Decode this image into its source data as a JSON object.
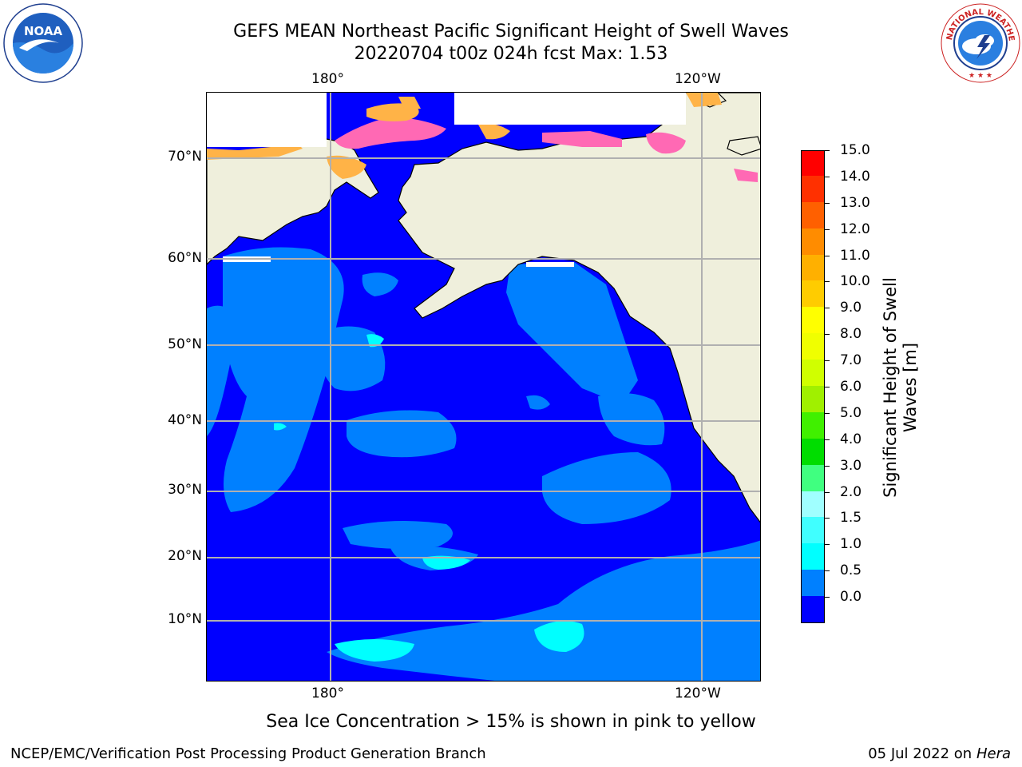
{
  "header": {
    "title_line1": "GEFS MEAN Northeast Pacific Significant Height of Swell Waves",
    "title_line2": "20220704 t00z 024h fcst   Max: 1.53"
  },
  "logos": {
    "left": {
      "name": "noaa-logo",
      "text": "NOAA"
    },
    "right": {
      "name": "nws-logo",
      "text": "NATIONAL WEATHER SERVICE"
    }
  },
  "map": {
    "lon_labels": [
      "180°",
      "120°W"
    ],
    "lat_labels": [
      "70°N",
      "60°N",
      "50°N",
      "40°N",
      "30°N",
      "20°N",
      "10°N"
    ],
    "colors": {
      "ocean_low": "#0000ff",
      "ocean_mid": "#0080ff",
      "cyan": "#00ffff",
      "land": "#efefdc",
      "ice_pink": "#ff69b4",
      "ice_orange": "#ffb347",
      "grid": "#b0b0b0"
    }
  },
  "colorbar": {
    "title": "Significant Height of Swell Waves [m]",
    "ticks": [
      "15.0",
      "14.0",
      "13.0",
      "12.0",
      "11.0",
      "10.0",
      "9.0",
      "8.0",
      "7.0",
      "6.0",
      "5.0",
      "4.0",
      "3.0",
      "2.0",
      "1.5",
      "1.0",
      "0.5",
      "0.0"
    ],
    "colors": [
      "#0000ff",
      "#0080ff",
      "#00ffff",
      "#40ffff",
      "#a0ffff",
      "#40ff80",
      "#00dd00",
      "#40f000",
      "#a0f000",
      "#d0ff00",
      "#f0ff00",
      "#ffff00",
      "#ffcc00",
      "#ffb000",
      "#ff8c00",
      "#ff6000",
      "#ff3000",
      "#ff0000"
    ]
  },
  "footer": {
    "sea_ice_note": "Sea Ice Concentration > 15% is shown in pink to yellow",
    "credit": "NCEP/EMC/Verification Post Processing Product Generation Branch",
    "date": "05 Jul 2022 on ",
    "machine": "Hera"
  }
}
